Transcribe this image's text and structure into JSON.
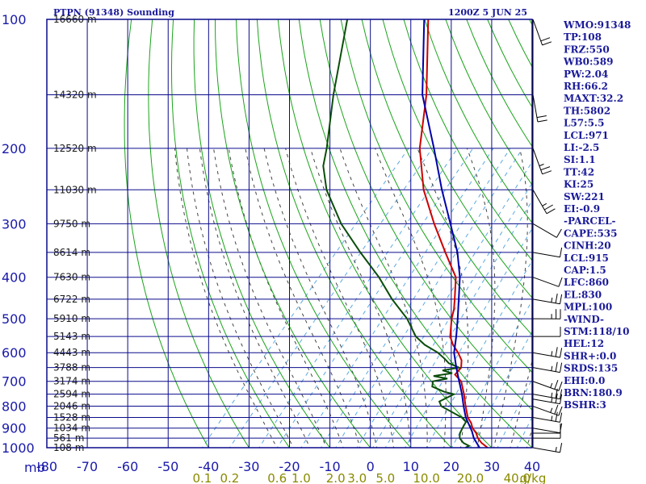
{
  "header": {
    "left_title": "PTPN (91348) Sounding",
    "right_title": "1200Z  5 JUN 25"
  },
  "indices": [
    "WMO:91348",
    "TP:108",
    "FRZ:550",
    "WB0:589",
    "PW:2.04",
    "RH:66.2",
    "MAXT:32.2",
    "TH:5802",
    "L57:5.5",
    "LCL:971",
    "LI:-2.5",
    "SI:1.1",
    "TT:42",
    "KI:25",
    "SW:221",
    "EI:-0.9",
    "-PARCEL-",
    "CAPE:535",
    "CINH:20",
    "LCL:915",
    "CAP:1.5",
    "LFC:860",
    "EL:830",
    "MPL:100",
    "-WIND-",
    "STM:118/10",
    "HEL:12",
    "SHR+:0.0",
    "SRDS:135",
    "EHI:0.0",
    "BRN:180.9",
    "BSHR:3"
  ],
  "colors": {
    "frame": "#0a0a8c",
    "dry_adiabat": "#1aa31a",
    "moist_adiabat": "#444444",
    "mixing_ratio": "#5aa8e0",
    "temperature": "#cc0000",
    "dewpoint": "#0b4d0b",
    "parcel": "#0000aa",
    "wind": "#000000"
  },
  "chart_data": {
    "type": "line",
    "title": "PTPN (91348) Sounding",
    "xlabel": "",
    "ylabel": "mb",
    "xlim": [
      -80,
      40
    ],
    "ylim": [
      1000,
      100
    ],
    "y_scale": "log-p skew-T",
    "grid": true,
    "pressure_ticks": [
      "100",
      "200",
      "300",
      "400",
      "500",
      "600",
      "700",
      "800",
      "900",
      "1000"
    ],
    "temperature_ticks": [
      "-80",
      "-70",
      "-60",
      "-50",
      "-40",
      "-30",
      "-20",
      "-10",
      "0",
      "10",
      "20",
      "30",
      "40"
    ],
    "height_ticks": [
      {
        "p": 100,
        "label": "16660 m"
      },
      {
        "p": 150,
        "label": "14320 m"
      },
      {
        "p": 200,
        "label": "12520 m"
      },
      {
        "p": 250,
        "label": "11030 m"
      },
      {
        "p": 300,
        "label": "9750 m"
      },
      {
        "p": 350,
        "label": "8614 m"
      },
      {
        "p": 400,
        "label": "7630 m"
      },
      {
        "p": 450,
        "label": "6722 m"
      },
      {
        "p": 500,
        "label": "5910 m"
      },
      {
        "p": 550,
        "label": "5143 m"
      },
      {
        "p": 600,
        "label": "4443 m"
      },
      {
        "p": 650,
        "label": "3788 m"
      },
      {
        "p": 700,
        "label": "3174 m"
      },
      {
        "p": 750,
        "label": "2594 m"
      },
      {
        "p": 800,
        "label": "2046 m"
      },
      {
        "p": 850,
        "label": "1528 m"
      },
      {
        "p": 900,
        "label": "1034 m"
      },
      {
        "p": 950,
        "label": "561 m"
      },
      {
        "p": 1000,
        "label": "108 m"
      }
    ],
    "mixing_ratio_labels": [
      {
        "w": 0.1,
        "label": "0.1"
      },
      {
        "w": 0.2,
        "label": "0.2"
      },
      {
        "w": 0.6,
        "label": "0.6"
      },
      {
        "w": 1.0,
        "label": "1.0"
      },
      {
        "w": 2.0,
        "label": "2.0"
      },
      {
        "w": 3.0,
        "label": "3.0"
      },
      {
        "w": 5.0,
        "label": "5.0"
      },
      {
        "w": 10.0,
        "label": "10.0"
      },
      {
        "w": 20.0,
        "label": "20.0"
      },
      {
        "w": 40.0,
        "label": "40.0"
      }
    ],
    "mixing_ratio_unit": "g/kg",
    "series": [
      {
        "key": "temperature",
        "points": [
          [
            1000,
            29
          ],
          [
            975,
            26.5
          ],
          [
            950,
            24.5
          ],
          [
            925,
            23
          ],
          [
            900,
            21
          ],
          [
            875,
            19.5
          ],
          [
            850,
            17.5
          ],
          [
            800,
            14.5
          ],
          [
            750,
            11.5
          ],
          [
            700,
            8
          ],
          [
            675,
            5
          ],
          [
            650,
            5
          ],
          [
            625,
            3.5
          ],
          [
            600,
            1
          ],
          [
            575,
            -2
          ],
          [
            550,
            -4.5
          ],
          [
            500,
            -8
          ],
          [
            475,
            -9.5
          ],
          [
            450,
            -11.5
          ],
          [
            400,
            -16
          ],
          [
            350,
            -24
          ],
          [
            300,
            -33
          ],
          [
            250,
            -43
          ],
          [
            200,
            -53
          ],
          [
            150,
            -63
          ],
          [
            100,
            -79
          ]
        ]
      },
      {
        "key": "dewpoint",
        "points": [
          [
            1000,
            23.5
          ],
          [
            990,
            24
          ],
          [
            975,
            22
          ],
          [
            950,
            20
          ],
          [
            925,
            19
          ],
          [
            900,
            18.5
          ],
          [
            870,
            18
          ],
          [
            850,
            16
          ],
          [
            800,
            8.5
          ],
          [
            780,
            7
          ],
          [
            750,
            9
          ],
          [
            740,
            6
          ],
          [
            720,
            2
          ],
          [
            700,
            1
          ],
          [
            690,
            4
          ],
          [
            680,
            0
          ],
          [
            670,
            4
          ],
          [
            660,
            1
          ],
          [
            650,
            4.5
          ],
          [
            635,
            1
          ],
          [
            620,
            -1
          ],
          [
            600,
            -4
          ],
          [
            575,
            -9
          ],
          [
            550,
            -13
          ],
          [
            500,
            -19
          ],
          [
            450,
            -27
          ],
          [
            400,
            -35
          ],
          [
            350,
            -45
          ],
          [
            300,
            -56
          ],
          [
            250,
            -67
          ],
          [
            220,
            -73
          ],
          [
            200,
            -76
          ],
          [
            150,
            -86
          ],
          [
            100,
            -99
          ]
        ]
      },
      {
        "key": "parcel",
        "points": [
          [
            1000,
            27
          ],
          [
            950,
            23.5
          ],
          [
            915,
            21.5
          ],
          [
            900,
            20.5
          ],
          [
            850,
            17
          ],
          [
            800,
            14
          ],
          [
            750,
            11
          ],
          [
            700,
            7.5
          ],
          [
            650,
            3.8
          ],
          [
            600,
            0
          ],
          [
            550,
            -3
          ],
          [
            500,
            -6.5
          ],
          [
            450,
            -10.5
          ],
          [
            400,
            -15
          ],
          [
            350,
            -21
          ],
          [
            300,
            -29
          ],
          [
            250,
            -38.5
          ],
          [
            200,
            -49.5
          ],
          [
            150,
            -64
          ],
          [
            100,
            -80
          ]
        ]
      }
    ],
    "wind_barbs": [
      {
        "p": 1000,
        "dir": 100,
        "spd": 5
      },
      {
        "p": 950,
        "dir": 90,
        "spd": 10
      },
      {
        "p": 925,
        "dir": 90,
        "spd": 10
      },
      {
        "p": 900,
        "dir": 100,
        "spd": 10
      },
      {
        "p": 850,
        "dir": 100,
        "spd": 15
      },
      {
        "p": 800,
        "dir": 110,
        "spd": 15
      },
      {
        "p": 770,
        "dir": 100,
        "spd": 15
      },
      {
        "p": 750,
        "dir": 100,
        "spd": 15
      },
      {
        "p": 700,
        "dir": 110,
        "spd": 15
      },
      {
        "p": 650,
        "dir": 100,
        "spd": 15
      },
      {
        "p": 600,
        "dir": 100,
        "spd": 15
      },
      {
        "p": 550,
        "dir": 90,
        "spd": 10
      },
      {
        "p": 500,
        "dir": 90,
        "spd": 15
      },
      {
        "p": 450,
        "dir": 100,
        "spd": 15
      },
      {
        "p": 400,
        "dir": 110,
        "spd": 10
      },
      {
        "p": 350,
        "dir": 100,
        "spd": 10
      },
      {
        "p": 300,
        "dir": 120,
        "spd": 10
      },
      {
        "p": 250,
        "dir": 150,
        "spd": 15
      },
      {
        "p": 200,
        "dir": 160,
        "spd": 15
      },
      {
        "p": 150,
        "dir": 170,
        "spd": 20
      },
      {
        "p": 100,
        "dir": 160,
        "spd": 20
      }
    ]
  }
}
